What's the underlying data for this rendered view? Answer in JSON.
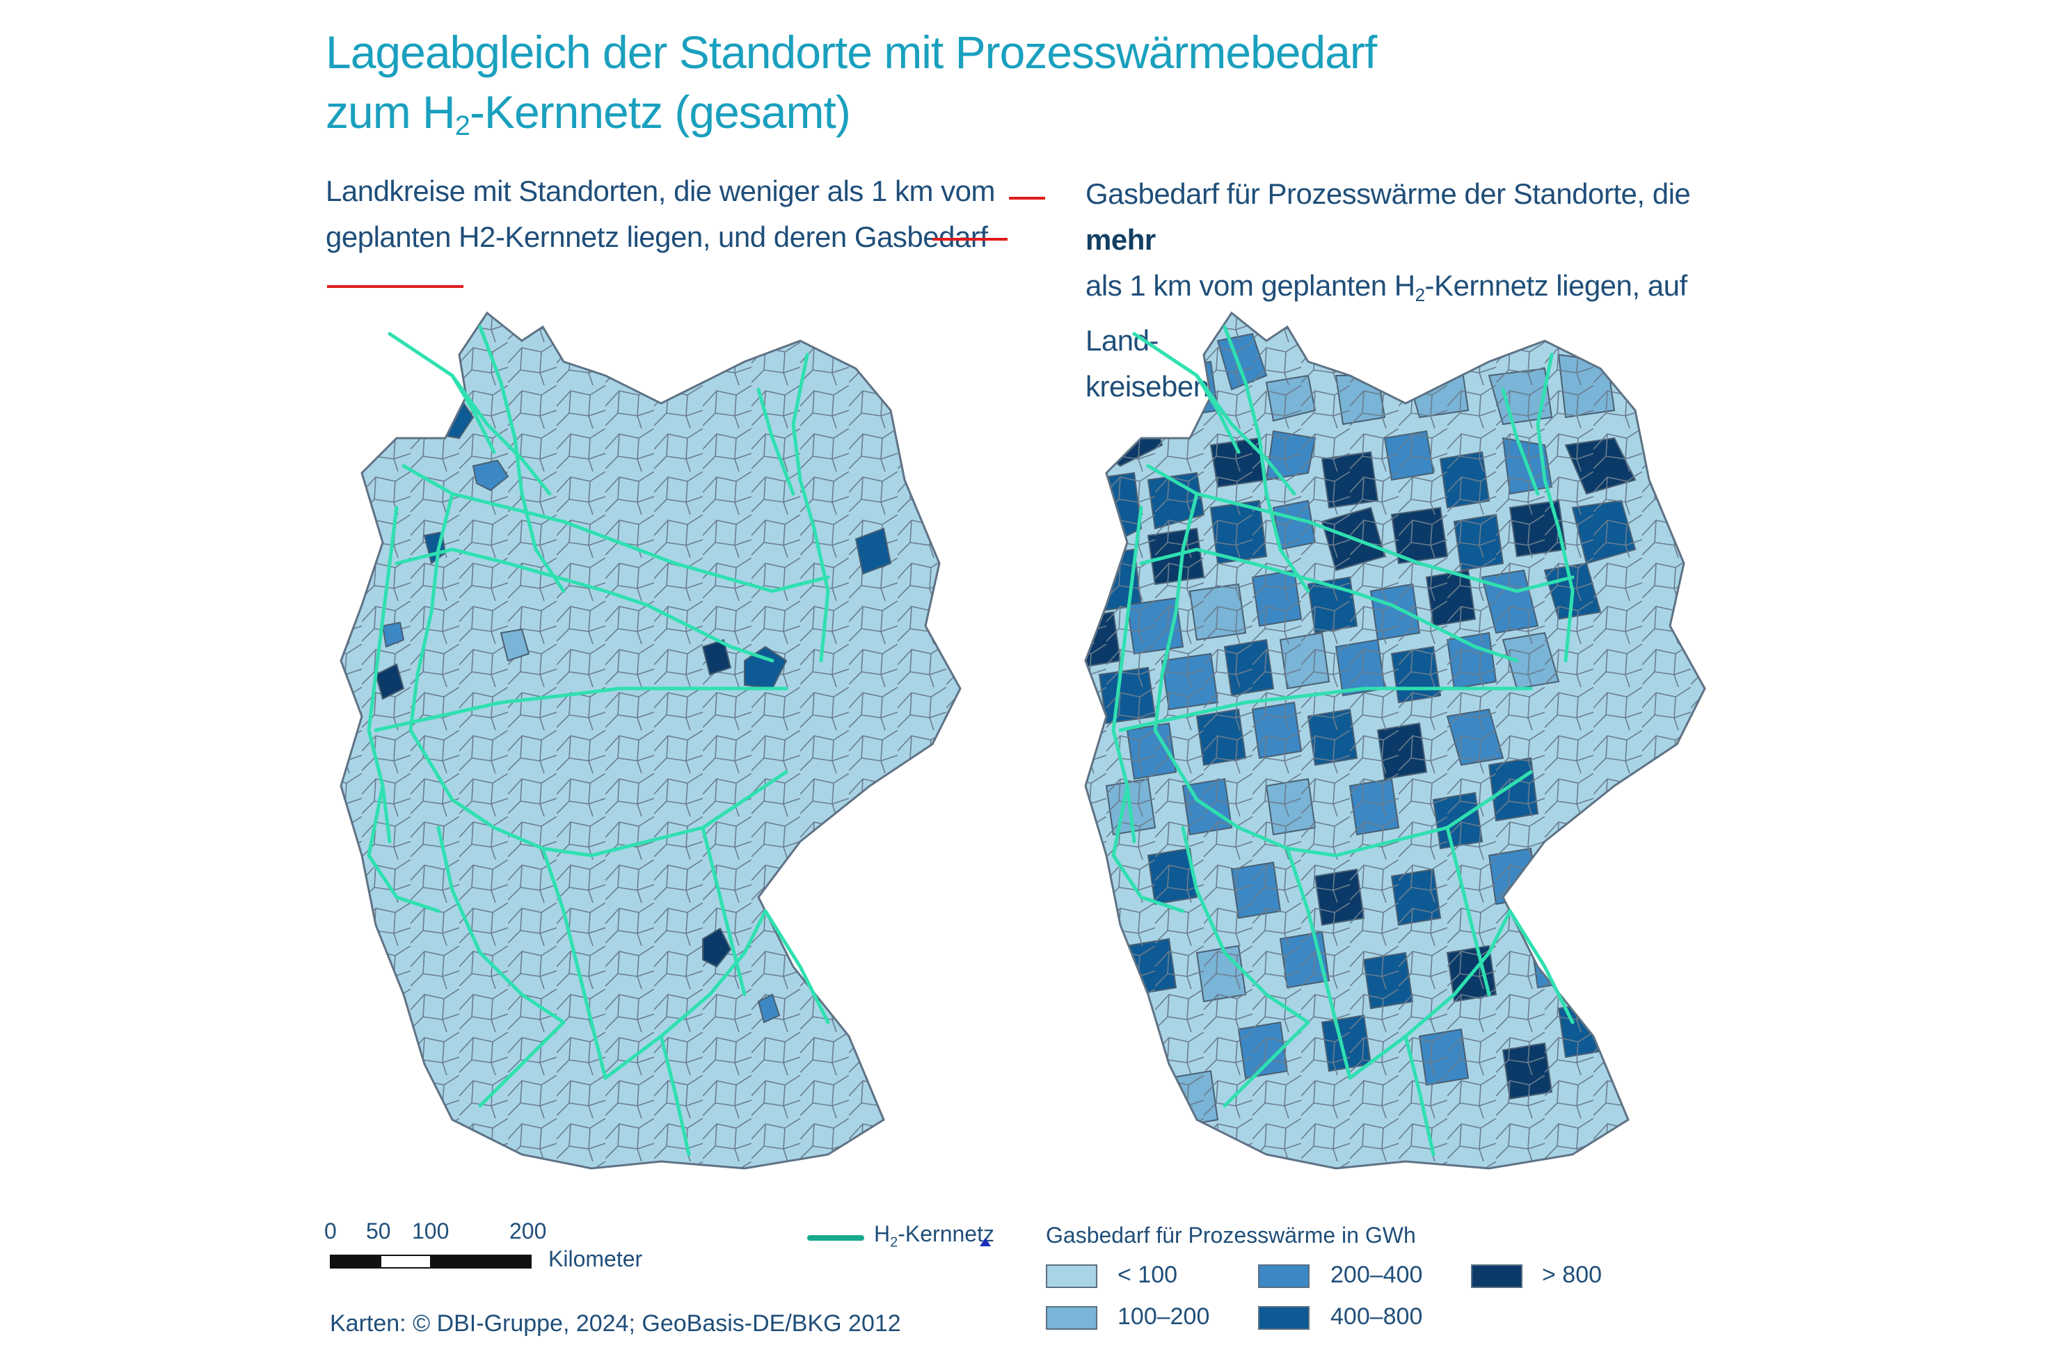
{
  "title": {
    "line1": "Lageabgleich der Standorte mit Prozesswärmebedarf",
    "line2_prefix": "zum H",
    "line2_sub": "2",
    "line2_suffix": "-Kernnetz (gesamt)"
  },
  "left_map": {
    "subtitle_line1": "Landkreise mit Standorten, die weniger als 1  km vom",
    "subtitle_line2": "geplanten H2-Kernnetz liegen, und deren Gasbedarf"
  },
  "right_map": {
    "subtitle_line1_prefix": "Gasbedarf für Prozesswärme der Standorte, die ",
    "subtitle_line1_bold": "mehr",
    "subtitle_line2_prefix": "als 1 km vom geplanten H",
    "subtitle_line2_sub": "2",
    "subtitle_line2_suffix": "-Kernnetz liegen, auf Land-",
    "subtitle_line3": "kreisebene"
  },
  "scale": {
    "ticks": [
      "0",
      "50",
      "100",
      "200"
    ],
    "unit": "Kilometer"
  },
  "network_legend": {
    "prefix": "H",
    "sub": "2",
    "suffix": "-Kernnetz",
    "color": "#17a98c"
  },
  "demand_legend": {
    "title": "Gasbedarf für Prozesswärme in GWh",
    "classes": [
      {
        "label": "< 100",
        "color": "#a8d4e6"
      },
      {
        "label": "100–200",
        "color": "#7ab4d6"
      },
      {
        "label": "200–400",
        "color": "#3b88c4"
      },
      {
        "label": "400–800",
        "color": "#0e5a94"
      },
      {
        "label": "> 800",
        "color": "#0b3a68"
      }
    ]
  },
  "colors": {
    "title": "#1aa0be",
    "text": "#1f4e79",
    "border": "#5f7284",
    "highlight": "#e11b1b"
  },
  "source": "Karten: © DBI-Gruppe, 2024; GeoBasis-DE/BKG 2012"
}
